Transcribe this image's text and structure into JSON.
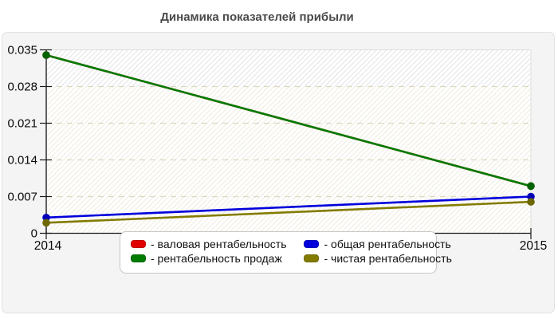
{
  "chart_data": {
    "type": "line",
    "title": "Динамика показателей прибыли",
    "categories": [
      "2014",
      "2015"
    ],
    "xlabel": "",
    "ylabel": "",
    "ylim": [
      0,
      0.035
    ],
    "y_ticks": [
      0,
      0.007,
      0.014,
      0.021,
      0.028,
      0.035
    ],
    "y_tick_labels": [
      "0",
      "0.007",
      "0.014",
      "0.021",
      "0.028",
      "0.035"
    ],
    "grid": "horizontal-dashed",
    "plot_background": "white-diagonal-hatch",
    "legend_position": "bottom-center",
    "series": [
      {
        "name": "валовая рентабельность",
        "legend_label": "- валовая рентабельность",
        "color": "#e10000",
        "marker_color": "#c00000",
        "values": [
          0.034,
          0.009
        ],
        "note": "coincides with 'рентабельность продаж'; its line is hidden beneath the green line"
      },
      {
        "name": "общая рентабельность",
        "legend_label": "- общая рентабельность",
        "color": "#0000dc",
        "marker_color": "#0000bb",
        "values": [
          0.003,
          0.007
        ]
      },
      {
        "name": "чистая рентабельность",
        "legend_label": "- чистая рентабельность",
        "color": "#837b00",
        "marker_color": "#6e6700",
        "values": [
          0.002,
          0.006
        ]
      },
      {
        "name": "рентабельность продаж",
        "legend_label": "- рентабельность продаж",
        "color": "#007c00",
        "marker_color": "#006300",
        "values": [
          0.034,
          0.009
        ]
      }
    ],
    "colors": {
      "axis": "#1a1a1a",
      "gridline": "#dcd8c0",
      "hatch_top_band": "#e6e6ea",
      "hatch_main": "#f0ede0",
      "card_background": "#f4f4f4",
      "title_text": "#4a4a4a"
    }
  }
}
